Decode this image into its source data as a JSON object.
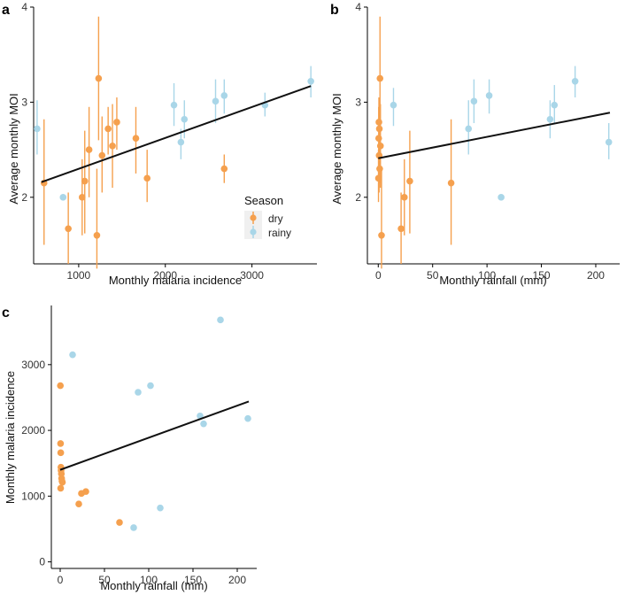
{
  "colors": {
    "dry": "#F5A04E",
    "rainy": "#A9D6E8",
    "fit": "#111111"
  },
  "legend": {
    "title": "Season",
    "entries": [
      {
        "key": "dry",
        "label": "dry"
      },
      {
        "key": "rainy",
        "label": "rainy"
      }
    ]
  },
  "chart_data": [
    {
      "panel": "a",
      "type": "scatter",
      "xlabel": "Monthly malaria incidence",
      "ylabel": "Average monthly MOI",
      "xlim": [
        480,
        3750
      ],
      "ylim": [
        1.3,
        4.0
      ],
      "xticks": [
        1000,
        2000,
        3000
      ],
      "yticks": [
        2,
        3,
        4
      ],
      "fit_line": [
        [
          570,
          2.16
        ],
        [
          3680,
          3.17
        ]
      ],
      "points": [
        {
          "x": 600,
          "y": 2.15,
          "lo": 1.5,
          "hi": 2.82,
          "season": "dry"
        },
        {
          "x": 880,
          "y": 1.67,
          "lo": 1.3,
          "hi": 2.05,
          "season": "dry"
        },
        {
          "x": 1040,
          "y": 2.0,
          "lo": 1.6,
          "hi": 2.4,
          "season": "dry"
        },
        {
          "x": 1070,
          "y": 2.17,
          "lo": 1.62,
          "hi": 2.7,
          "season": "dry"
        },
        {
          "x": 1120,
          "y": 2.5,
          "lo": 2.0,
          "hi": 2.95,
          "season": "dry"
        },
        {
          "x": 1210,
          "y": 1.6,
          "lo": 1.25,
          "hi": 2.3,
          "season": "dry"
        },
        {
          "x": 1230,
          "y": 3.25,
          "lo": 2.6,
          "hi": 3.9,
          "season": "dry"
        },
        {
          "x": 1270,
          "y": 2.44,
          "lo": 2.05,
          "hi": 2.85,
          "season": "dry"
        },
        {
          "x": 1340,
          "y": 2.72,
          "lo": 2.45,
          "hi": 2.95,
          "season": "dry"
        },
        {
          "x": 1390,
          "y": 2.54,
          "lo": 2.1,
          "hi": 2.98,
          "season": "dry"
        },
        {
          "x": 1440,
          "y": 2.79,
          "lo": 2.5,
          "hi": 3.05,
          "season": "dry"
        },
        {
          "x": 1660,
          "y": 2.62,
          "lo": 2.25,
          "hi": 2.95,
          "season": "dry"
        },
        {
          "x": 1790,
          "y": 2.2,
          "lo": 1.95,
          "hi": 2.5,
          "season": "dry"
        },
        {
          "x": 2680,
          "y": 2.3,
          "lo": 2.15,
          "hi": 2.45,
          "season": "dry"
        },
        {
          "x": 520,
          "y": 2.72,
          "lo": 2.45,
          "hi": 3.02,
          "season": "rainy"
        },
        {
          "x": 820,
          "y": 2.0,
          "lo": 2.0,
          "hi": 2.0,
          "season": "rainy"
        },
        {
          "x": 2100,
          "y": 2.97,
          "lo": 2.75,
          "hi": 3.2,
          "season": "rainy"
        },
        {
          "x": 2180,
          "y": 2.58,
          "lo": 2.4,
          "hi": 2.72,
          "season": "rainy"
        },
        {
          "x": 2220,
          "y": 2.82,
          "lo": 2.62,
          "hi": 3.02,
          "season": "rainy"
        },
        {
          "x": 2580,
          "y": 3.01,
          "lo": 2.78,
          "hi": 3.24,
          "season": "rainy"
        },
        {
          "x": 2680,
          "y": 3.07,
          "lo": 2.88,
          "hi": 3.24,
          "season": "rainy"
        },
        {
          "x": 3150,
          "y": 2.97,
          "lo": 2.85,
          "hi": 3.1,
          "season": "rainy"
        },
        {
          "x": 3680,
          "y": 3.22,
          "lo": 3.05,
          "hi": 3.38,
          "season": "rainy"
        }
      ]
    },
    {
      "panel": "b",
      "type": "scatter",
      "xlabel": "Monthly rainfall (mm)",
      "ylabel": "Average monthly MOI",
      "xlim": [
        -10,
        222
      ],
      "ylim": [
        1.3,
        4.0
      ],
      "xticks": [
        0,
        50,
        100,
        150,
        200
      ],
      "yticks": [
        2,
        3,
        4
      ],
      "fit_line": [
        [
          0,
          2.41
        ],
        [
          213,
          2.89
        ]
      ],
      "points": [
        {
          "x": 0.2,
          "y": 2.2,
          "lo": 1.95,
          "hi": 2.5,
          "season": "dry"
        },
        {
          "x": 0.4,
          "y": 2.62,
          "lo": 2.25,
          "hi": 2.95,
          "season": "dry"
        },
        {
          "x": 0.6,
          "y": 2.79,
          "lo": 2.5,
          "hi": 3.05,
          "season": "dry"
        },
        {
          "x": 0.8,
          "y": 2.44,
          "lo": 2.05,
          "hi": 2.85,
          "season": "dry"
        },
        {
          "x": 1.0,
          "y": 2.72,
          "lo": 2.45,
          "hi": 2.95,
          "season": "dry"
        },
        {
          "x": 1.3,
          "y": 2.3,
          "lo": 2.15,
          "hi": 2.45,
          "season": "dry"
        },
        {
          "x": 1.6,
          "y": 3.25,
          "lo": 2.6,
          "hi": 3.9,
          "season": "dry"
        },
        {
          "x": 2.0,
          "y": 2.54,
          "lo": 2.1,
          "hi": 2.98,
          "season": "dry"
        },
        {
          "x": 3.0,
          "y": 1.6,
          "lo": 1.25,
          "hi": 2.3,
          "season": "dry"
        },
        {
          "x": 21,
          "y": 1.67,
          "lo": 1.3,
          "hi": 2.05,
          "season": "dry"
        },
        {
          "x": 24,
          "y": 2.0,
          "lo": 1.6,
          "hi": 2.4,
          "season": "dry"
        },
        {
          "x": 29,
          "y": 2.17,
          "lo": 1.62,
          "hi": 2.7,
          "season": "dry"
        },
        {
          "x": 67,
          "y": 2.15,
          "lo": 1.5,
          "hi": 2.82,
          "season": "dry"
        },
        {
          "x": 14,
          "y": 2.97,
          "lo": 2.75,
          "hi": 3.15,
          "season": "rainy"
        },
        {
          "x": 83,
          "y": 2.72,
          "lo": 2.45,
          "hi": 3.02,
          "season": "rainy"
        },
        {
          "x": 88,
          "y": 3.01,
          "lo": 2.78,
          "hi": 3.24,
          "season": "rainy"
        },
        {
          "x": 102,
          "y": 3.07,
          "lo": 2.88,
          "hi": 3.24,
          "season": "rainy"
        },
        {
          "x": 113,
          "y": 2.0,
          "lo": 2.0,
          "hi": 2.0,
          "season": "rainy"
        },
        {
          "x": 158,
          "y": 2.82,
          "lo": 2.62,
          "hi": 3.02,
          "season": "rainy"
        },
        {
          "x": 162,
          "y": 2.97,
          "lo": 2.78,
          "hi": 3.18,
          "season": "rainy"
        },
        {
          "x": 181,
          "y": 3.22,
          "lo": 3.05,
          "hi": 3.38,
          "season": "rainy"
        },
        {
          "x": 212,
          "y": 2.58,
          "lo": 2.4,
          "hi": 2.78,
          "season": "rainy"
        }
      ]
    },
    {
      "panel": "c",
      "type": "scatter",
      "xlabel": "Monthly rainfall (mm)",
      "ylabel": "Monthly malaria incidence",
      "xlim": [
        -10,
        222
      ],
      "ylim": [
        -100,
        3900
      ],
      "xticks": [
        0,
        50,
        100,
        150,
        200
      ],
      "yticks": [
        0,
        1000,
        2000,
        3000
      ],
      "fit_line": [
        [
          0,
          1400
        ],
        [
          213,
          2440
        ]
      ],
      "points": [
        {
          "x": 0.2,
          "y": 2680,
          "season": "dry"
        },
        {
          "x": 0.4,
          "y": 1800,
          "season": "dry"
        },
        {
          "x": 0.6,
          "y": 1660,
          "season": "dry"
        },
        {
          "x": 0.8,
          "y": 1440,
          "season": "dry"
        },
        {
          "x": 1.0,
          "y": 1390,
          "season": "dry"
        },
        {
          "x": 1.3,
          "y": 1340,
          "season": "dry"
        },
        {
          "x": 1.6,
          "y": 1270,
          "season": "dry"
        },
        {
          "x": 2.0,
          "y": 1230,
          "season": "dry"
        },
        {
          "x": 2.5,
          "y": 1210,
          "season": "dry"
        },
        {
          "x": 0.5,
          "y": 1120,
          "season": "dry"
        },
        {
          "x": 21,
          "y": 880,
          "season": "dry"
        },
        {
          "x": 24,
          "y": 1040,
          "season": "dry"
        },
        {
          "x": 29,
          "y": 1070,
          "season": "dry"
        },
        {
          "x": 67,
          "y": 600,
          "season": "dry"
        },
        {
          "x": 14,
          "y": 3150,
          "season": "rainy"
        },
        {
          "x": 83,
          "y": 520,
          "season": "rainy"
        },
        {
          "x": 88,
          "y": 2580,
          "season": "rainy"
        },
        {
          "x": 102,
          "y": 2680,
          "season": "rainy"
        },
        {
          "x": 113,
          "y": 820,
          "season": "rainy"
        },
        {
          "x": 158,
          "y": 2220,
          "season": "rainy"
        },
        {
          "x": 162,
          "y": 2100,
          "season": "rainy"
        },
        {
          "x": 181,
          "y": 3680,
          "season": "rainy"
        },
        {
          "x": 212,
          "y": 2180,
          "season": "rainy"
        }
      ]
    }
  ]
}
